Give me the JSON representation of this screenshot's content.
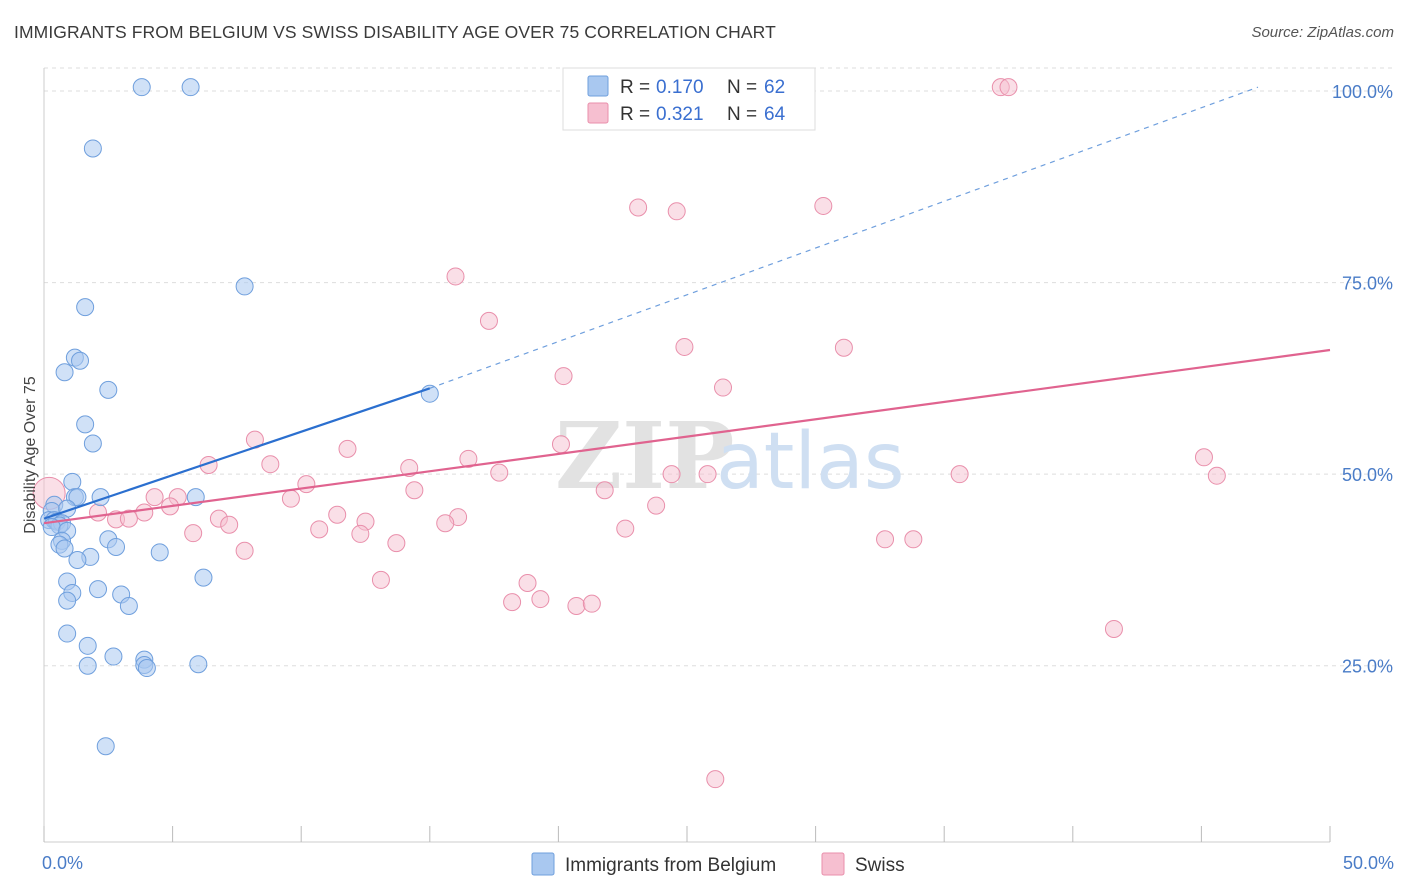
{
  "title": "IMMIGRANTS FROM BELGIUM VS SWISS DISABILITY AGE OVER 75 CORRELATION CHART",
  "source": "Source: ZipAtlas.com",
  "watermark": {
    "zip": "ZIP",
    "atlas": "atlas"
  },
  "colors": {
    "blue_fill": "#a9c8f0",
    "blue_stroke": "#6f9fdd",
    "blue_line": "#2b6fcf",
    "pink_fill": "#f6bfd0",
    "pink_stroke": "#e98fab",
    "pink_line": "#e0638f",
    "grid": "#dddddd",
    "tick_text": "#4a7cc7"
  },
  "legend": {
    "rows": [
      {
        "r_label": "R =",
        "r_value": "0.170",
        "n_label": "N =",
        "n_value": "62"
      },
      {
        "r_label": "R =",
        "r_value": "0.321",
        "n_label": "N =",
        "n_value": "64"
      }
    ]
  },
  "chart_data": {
    "type": "scatter",
    "title": "IMMIGRANTS FROM BELGIUM VS SWISS DISABILITY AGE OVER 75 CORRELATION CHART",
    "xlabel": "",
    "ylabel": "Disability Age Over 75",
    "xlim": [
      0,
      50
    ],
    "ylim": [
      2,
      103
    ],
    "x_tick_labels": [
      "0.0%",
      "50.0%"
    ],
    "y_ticks": [
      25,
      50,
      75,
      100
    ],
    "y_tick_labels": [
      "25.0%",
      "50.0%",
      "75.0%",
      "100.0%"
    ],
    "grid": true,
    "legend_position": "top-center",
    "bottom_legend": [
      "Immigrants from Belgium",
      "Swiss"
    ],
    "series": [
      {
        "name": "Immigrants from Belgium",
        "color": "#a9c8f0",
        "trend": {
          "x0": 0,
          "y0": 44.2,
          "x1": 15,
          "y1": 61.2,
          "dashed_to_x": 47.2,
          "dashed_to_y": 100.5
        },
        "points": [
          [
            3.8,
            100.5
          ],
          [
            5.7,
            100.5
          ],
          [
            1.9,
            92.5
          ],
          [
            7.8,
            74.5
          ],
          [
            1.6,
            71.8
          ],
          [
            1.2,
            65.2
          ],
          [
            1.4,
            64.8
          ],
          [
            0.8,
            63.3
          ],
          [
            2.5,
            61
          ],
          [
            15,
            60.5
          ],
          [
            1.6,
            56.5
          ],
          [
            1.9,
            54
          ],
          [
            1.1,
            49
          ],
          [
            1.2,
            47
          ],
          [
            1.3,
            47
          ],
          [
            2.2,
            47
          ],
          [
            5.9,
            47
          ],
          [
            0.4,
            46
          ],
          [
            0.3,
            45.2
          ],
          [
            0.9,
            45.5
          ],
          [
            0.2,
            44
          ],
          [
            0.4,
            44
          ],
          [
            0.5,
            43.8
          ],
          [
            0.7,
            43.6
          ],
          [
            0.6,
            43.3
          ],
          [
            0.3,
            43.1
          ],
          [
            0.9,
            42.6
          ],
          [
            0.7,
            41.3
          ],
          [
            2.5,
            41.5
          ],
          [
            0.6,
            40.8
          ],
          [
            0.8,
            40.3
          ],
          [
            2.8,
            40.5
          ],
          [
            1.8,
            39.2
          ],
          [
            4.5,
            39.8
          ],
          [
            1.3,
            38.8
          ],
          [
            6.2,
            36.5
          ],
          [
            0.9,
            36
          ],
          [
            2.1,
            35
          ],
          [
            1.1,
            34.5
          ],
          [
            3,
            34.3
          ],
          [
            0.9,
            33.5
          ],
          [
            3.3,
            32.8
          ],
          [
            0.9,
            29.2
          ],
          [
            1.7,
            27.6
          ],
          [
            2.7,
            26.2
          ],
          [
            3.9,
            25.8
          ],
          [
            1.7,
            25
          ],
          [
            3.9,
            25.1
          ],
          [
            4,
            24.7
          ],
          [
            6,
            25.2
          ],
          [
            2.4,
            14.5
          ]
        ]
      },
      {
        "name": "Swiss",
        "color": "#f6bfd0",
        "trend": {
          "x0": 0,
          "y0": 43.6,
          "x1": 50,
          "y1": 66.2
        },
        "points": [
          [
            0.2,
            47.5
          ],
          [
            37.2,
            100.5
          ],
          [
            37.5,
            100.5
          ],
          [
            23.1,
            84.8
          ],
          [
            24.6,
            84.3
          ],
          [
            30.3,
            85
          ],
          [
            16,
            75.8
          ],
          [
            17.3,
            70
          ],
          [
            24.9,
            66.6
          ],
          [
            31.1,
            66.5
          ],
          [
            20.2,
            62.8
          ],
          [
            26.4,
            61.3
          ],
          [
            8.2,
            54.5
          ],
          [
            11.8,
            53.3
          ],
          [
            20.1,
            53.9
          ],
          [
            16.5,
            52
          ],
          [
            45.1,
            52.2
          ],
          [
            6.4,
            51.2
          ],
          [
            8.8,
            51.3
          ],
          [
            14.2,
            50.8
          ],
          [
            17.7,
            50.2
          ],
          [
            24.4,
            50
          ],
          [
            25.8,
            50
          ],
          [
            35.6,
            50
          ],
          [
            45.6,
            49.8
          ],
          [
            10.2,
            48.7
          ],
          [
            14.4,
            47.9
          ],
          [
            21.8,
            47.9
          ],
          [
            4.3,
            47
          ],
          [
            5.2,
            47
          ],
          [
            9.6,
            46.8
          ],
          [
            4.9,
            45.8
          ],
          [
            23.8,
            45.9
          ],
          [
            2.1,
            45
          ],
          [
            3.9,
            45
          ],
          [
            11.4,
            44.7
          ],
          [
            16.1,
            44.4
          ],
          [
            2.8,
            44.1
          ],
          [
            3.3,
            44.2
          ],
          [
            6.8,
            44.2
          ],
          [
            7.2,
            43.4
          ],
          [
            12.5,
            43.8
          ],
          [
            15.6,
            43.6
          ],
          [
            10.7,
            42.8
          ],
          [
            22.6,
            42.9
          ],
          [
            5.8,
            42.3
          ],
          [
            12.3,
            42.2
          ],
          [
            32.7,
            41.5
          ],
          [
            33.8,
            41.5
          ],
          [
            13.7,
            41
          ],
          [
            7.8,
            40
          ],
          [
            13.1,
            36.2
          ],
          [
            18.8,
            35.8
          ],
          [
            19.3,
            33.7
          ],
          [
            18.2,
            33.3
          ],
          [
            20.7,
            32.8
          ],
          [
            21.3,
            33.1
          ],
          [
            41.6,
            29.8
          ],
          [
            26.1,
            10.2
          ]
        ]
      }
    ]
  }
}
